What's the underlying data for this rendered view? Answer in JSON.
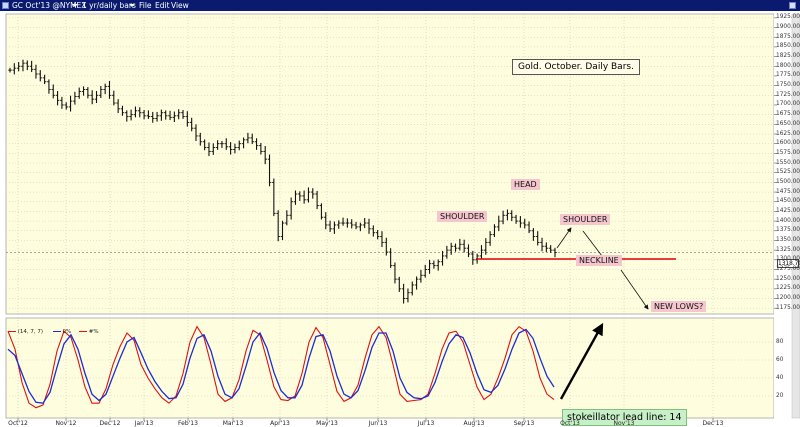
{
  "window": {
    "symbol": "GC Oct'13 @NYMEX",
    "timeframe": "1 yr/daily bars",
    "menu": [
      "File",
      "Edit",
      "View"
    ]
  },
  "chart_data": {
    "type": "ohlc",
    "title": "Gold. October. Daily Bars.",
    "x_ticks": [
      "Oct'12",
      "Nov'12",
      "Dec'12",
      "Jan'13",
      "Feb'13",
      "Mar'13",
      "Apr'13",
      "May'13",
      "Jun'13",
      "Jul'13",
      "Aug'13",
      "Sep'13",
      "Oct'13",
      "Nov'13",
      "Dec'13"
    ],
    "y_ticks": [
      1925,
      1900,
      1875,
      1850,
      1825,
      1800,
      1775,
      1750,
      1725,
      1700,
      1675,
      1650,
      1625,
      1600,
      1575,
      1550,
      1525,
      1500,
      1475,
      1450,
      1425,
      1400,
      1375,
      1350,
      1325,
      1300,
      1275,
      1250,
      1225,
      1200,
      1175
    ],
    "y_tick_labels": [
      "1925.00",
      "1900.00",
      "1875.00",
      "1850.00",
      "1825.00",
      "1800.00",
      "1775.00",
      "1750.00",
      "1725.00",
      "1700.00",
      "1675.00",
      "1650.00",
      "1625.00",
      "1600.00",
      "1575.00",
      "1550.00",
      "1525.00",
      "1500.00",
      "1475.00",
      "1450.00",
      "1425.00",
      "1400.00",
      "1375.00",
      "1350.00",
      "1325.00",
      "1300.00",
      "1275.00",
      "1250.00",
      "1225.00",
      "1200.00",
      "1175.00"
    ],
    "ylim": [
      1160,
      1935
    ],
    "last_price": 1318.7,
    "last_price_label": "1318.70",
    "closes": [
      1790,
      1795,
      1800,
      1808,
      1800,
      1792,
      1780,
      1770,
      1760,
      1740,
      1725,
      1712,
      1700,
      1695,
      1710,
      1722,
      1735,
      1740,
      1725,
      1715,
      1725,
      1740,
      1748,
      1725,
      1705,
      1690,
      1680,
      1670,
      1675,
      1685,
      1680,
      1672,
      1670,
      1665,
      1672,
      1680,
      1672,
      1668,
      1672,
      1680,
      1670,
      1655,
      1640,
      1620,
      1605,
      1590,
      1580,
      1590,
      1600,
      1600,
      1592,
      1585,
      1590,
      1600,
      1610,
      1615,
      1605,
      1595,
      1580,
      1560,
      1500,
      1420,
      1360,
      1395,
      1415,
      1450,
      1470,
      1465,
      1455,
      1475,
      1470,
      1440,
      1410,
      1390,
      1380,
      1390,
      1395,
      1395,
      1395,
      1390,
      1385,
      1390,
      1395,
      1380,
      1370,
      1360,
      1345,
      1320,
      1285,
      1250,
      1225,
      1200,
      1215,
      1235,
      1250,
      1260,
      1275,
      1290,
      1285,
      1295,
      1310,
      1325,
      1335,
      1330,
      1340,
      1330,
      1315,
      1300,
      1310,
      1325,
      1345,
      1365,
      1385,
      1400,
      1415,
      1420,
      1410,
      1400,
      1395,
      1390,
      1375,
      1360,
      1345,
      1335,
      1330,
      1325,
      1318.7
    ],
    "osc_fast": [
      92,
      72,
      35,
      12,
      7,
      10,
      33,
      70,
      92,
      85,
      60,
      30,
      12,
      12,
      28,
      55,
      75,
      90,
      82,
      55,
      40,
      28,
      18,
      12,
      20,
      45,
      80,
      97,
      85,
      55,
      22,
      14,
      18,
      38,
      70,
      93,
      88,
      60,
      30,
      16,
      15,
      20,
      45,
      80,
      96,
      85,
      55,
      25,
      14,
      18,
      32,
      62,
      88,
      97,
      85,
      55,
      22,
      14,
      15,
      16,
      22,
      45,
      72,
      90,
      92,
      80,
      55,
      30,
      16,
      22,
      40,
      62,
      88,
      97,
      92,
      70,
      40,
      22,
      16
    ],
    "osc_slow": [
      72,
      65,
      45,
      25,
      13,
      12,
      24,
      52,
      78,
      88,
      72,
      45,
      22,
      15,
      22,
      42,
      62,
      80,
      85,
      68,
      50,
      36,
      25,
      17,
      18,
      33,
      62,
      84,
      88,
      70,
      42,
      22,
      18,
      28,
      53,
      80,
      90,
      73,
      46,
      26,
      18,
      18,
      32,
      62,
      86,
      88,
      70,
      42,
      22,
      18,
      26,
      48,
      74,
      90,
      90,
      70,
      40,
      24,
      18,
      17,
      20,
      35,
      58,
      78,
      88,
      85,
      68,
      45,
      27,
      24,
      32,
      50,
      72,
      90,
      94,
      84,
      62,
      42,
      30
    ],
    "osc_ticks": [
      80,
      60,
      40,
      20
    ]
  },
  "oscillator": {
    "name": "(14, 7, 7)",
    "legend": [
      "0%",
      "#%"
    ],
    "colors": {
      "fast": "#dd1111",
      "slow": "#1a2cd6"
    }
  },
  "annotations": {
    "shoulder_left": "SHOULDER",
    "head": "HEAD",
    "shoulder_right": "SHOULDER",
    "neckline": "NECKLINE",
    "new_lows": "NEW LOWS?",
    "lead_line": "stokeillator lead line: 14"
  },
  "colors": {
    "titlebar": "#0a1a6e",
    "chart_bg": "#fefede",
    "annotation_bg": "#f6c6cf",
    "neckline": "#e00000",
    "lead_bg": "#c8f0c8"
  }
}
